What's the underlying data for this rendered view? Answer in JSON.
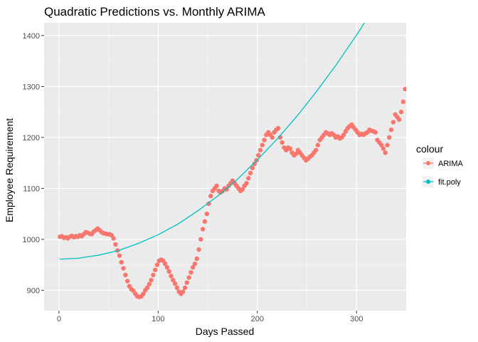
{
  "chart_data": {
    "type": "scatter",
    "title": "Quadratic Predictions vs. Monthly ARIMA",
    "xlabel": "Days Passed",
    "ylabel": "Employee Requirement",
    "xlim": [
      -15,
      350
    ],
    "ylim": [
      860,
      1425
    ],
    "x_ticks": [
      0,
      100,
      200,
      300
    ],
    "y_ticks": [
      900,
      1000,
      1100,
      1200,
      1300,
      1400
    ],
    "grid": true,
    "legend_position": "right",
    "legend": {
      "title": "colour",
      "entries": [
        {
          "label": "ARIMA",
          "color": "#F8766D"
        },
        {
          "label": "fit.poly",
          "color": "#00BFC4"
        }
      ]
    },
    "series": [
      {
        "name": "ARIMA",
        "kind": "points",
        "color": "#F8766D",
        "points": [
          [
            1,
            1005
          ],
          [
            3,
            1006
          ],
          [
            5,
            1003
          ],
          [
            7,
            1004
          ],
          [
            9,
            1002
          ],
          [
            11,
            1005
          ],
          [
            13,
            1007
          ],
          [
            15,
            1004
          ],
          [
            17,
            1006
          ],
          [
            19,
            1005
          ],
          [
            21,
            1008
          ],
          [
            23,
            1006
          ],
          [
            25,
            1010
          ],
          [
            27,
            1014
          ],
          [
            29,
            1013
          ],
          [
            31,
            1011
          ],
          [
            33,
            1010
          ],
          [
            35,
            1015
          ],
          [
            37,
            1018
          ],
          [
            39,
            1021
          ],
          [
            41,
            1018
          ],
          [
            43,
            1014
          ],
          [
            45,
            1012
          ],
          [
            47,
            1011
          ],
          [
            49,
            1010
          ],
          [
            51,
            1010
          ],
          [
            53,
            1008
          ],
          [
            55,
            1002
          ],
          [
            57,
            990
          ],
          [
            59,
            978
          ],
          [
            61,
            968
          ],
          [
            63,
            955
          ],
          [
            65,
            943
          ],
          [
            67,
            930
          ],
          [
            69,
            918
          ],
          [
            71,
            908
          ],
          [
            73,
            902
          ],
          [
            75,
            899
          ],
          [
            77,
            893
          ],
          [
            79,
            888
          ],
          [
            81,
            887
          ],
          [
            83,
            888
          ],
          [
            85,
            893
          ],
          [
            87,
            900
          ],
          [
            89,
            905
          ],
          [
            91,
            912
          ],
          [
            93,
            920
          ],
          [
            95,
            930
          ],
          [
            97,
            940
          ],
          [
            99,
            950
          ],
          [
            101,
            958
          ],
          [
            103,
            960
          ],
          [
            105,
            958
          ],
          [
            107,
            952
          ],
          [
            109,
            945
          ],
          [
            111,
            937
          ],
          [
            113,
            928
          ],
          [
            115,
            920
          ],
          [
            117,
            913
          ],
          [
            119,
            905
          ],
          [
            121,
            897
          ],
          [
            123,
            893
          ],
          [
            125,
            897
          ],
          [
            127,
            905
          ],
          [
            129,
            915
          ],
          [
            131,
            925
          ],
          [
            133,
            935
          ],
          [
            135,
            945
          ],
          [
            137,
            952
          ],
          [
            139,
            962
          ],
          [
            141,
            980
          ],
          [
            143,
            1000
          ],
          [
            145,
            1020
          ],
          [
            147,
            1035
          ],
          [
            149,
            1050
          ],
          [
            151,
            1070
          ],
          [
            153,
            1085
          ],
          [
            155,
            1095
          ],
          [
            157,
            1100
          ],
          [
            159,
            1105
          ],
          [
            161,
            1095
          ],
          [
            163,
            1092
          ],
          [
            165,
            1095
          ],
          [
            167,
            1100
          ],
          [
            169,
            1098
          ],
          [
            171,
            1105
          ],
          [
            173,
            1110
          ],
          [
            175,
            1115
          ],
          [
            177,
            1110
          ],
          [
            179,
            1105
          ],
          [
            181,
            1100
          ],
          [
            183,
            1095
          ],
          [
            185,
            1098
          ],
          [
            187,
            1105
          ],
          [
            189,
            1110
          ],
          [
            191,
            1120
          ],
          [
            193,
            1130
          ],
          [
            195,
            1140
          ],
          [
            197,
            1148
          ],
          [
            199,
            1155
          ],
          [
            201,
            1165
          ],
          [
            203,
            1175
          ],
          [
            205,
            1185
          ],
          [
            207,
            1195
          ],
          [
            209,
            1205
          ],
          [
            211,
            1210
          ],
          [
            213,
            1205
          ],
          [
            215,
            1200
          ],
          [
            217,
            1210
          ],
          [
            219,
            1215
          ],
          [
            221,
            1218
          ],
          [
            223,
            1200
          ],
          [
            225,
            1190
          ],
          [
            227,
            1180
          ],
          [
            229,
            1175
          ],
          [
            231,
            1180
          ],
          [
            233,
            1178
          ],
          [
            235,
            1170
          ],
          [
            237,
            1165
          ],
          [
            239,
            1168
          ],
          [
            241,
            1175
          ],
          [
            243,
            1170
          ],
          [
            245,
            1165
          ],
          [
            247,
            1160
          ],
          [
            249,
            1155
          ],
          [
            251,
            1158
          ],
          [
            253,
            1162
          ],
          [
            255,
            1165
          ],
          [
            257,
            1170
          ],
          [
            259,
            1175
          ],
          [
            261,
            1185
          ],
          [
            263,
            1195
          ],
          [
            265,
            1200
          ],
          [
            267,
            1205
          ],
          [
            269,
            1210
          ],
          [
            271,
            1208
          ],
          [
            273,
            1205
          ],
          [
            275,
            1208
          ],
          [
            277,
            1205
          ],
          [
            279,
            1200
          ],
          [
            281,
            1202
          ],
          [
            283,
            1198
          ],
          [
            285,
            1200
          ],
          [
            287,
            1205
          ],
          [
            289,
            1212
          ],
          [
            291,
            1218
          ],
          [
            293,
            1222
          ],
          [
            295,
            1225
          ],
          [
            297,
            1220
          ],
          [
            299,
            1215
          ],
          [
            301,
            1210
          ],
          [
            303,
            1205
          ],
          [
            305,
            1207
          ],
          [
            307,
            1205
          ],
          [
            309,
            1208
          ],
          [
            311,
            1210
          ],
          [
            313,
            1215
          ],
          [
            315,
            1213
          ],
          [
            317,
            1212
          ],
          [
            319,
            1210
          ],
          [
            321,
            1195
          ],
          [
            323,
            1190
          ],
          [
            325,
            1185
          ],
          [
            327,
            1178
          ],
          [
            329,
            1170
          ],
          [
            331,
            1185
          ],
          [
            333,
            1200
          ],
          [
            335,
            1215
          ],
          [
            337,
            1230
          ],
          [
            339,
            1245
          ],
          [
            341,
            1240
          ],
          [
            343,
            1235
          ],
          [
            345,
            1250
          ],
          [
            347,
            1270
          ],
          [
            349,
            1295
          ]
        ]
      },
      {
        "name": "fit.poly",
        "kind": "line",
        "color": "#00BFC4",
        "points": [
          [
            1,
            961
          ],
          [
            20,
            963
          ],
          [
            40,
            969
          ],
          [
            60,
            978
          ],
          [
            80,
            992
          ],
          [
            100,
            1009
          ],
          [
            120,
            1030
          ],
          [
            140,
            1056
          ],
          [
            160,
            1085
          ],
          [
            180,
            1118
          ],
          [
            200,
            1156
          ],
          [
            220,
            1197
          ],
          [
            240,
            1242
          ],
          [
            260,
            1291
          ],
          [
            280,
            1344
          ],
          [
            300,
            1401
          ],
          [
            334,
            1503
          ]
        ]
      }
    ]
  }
}
